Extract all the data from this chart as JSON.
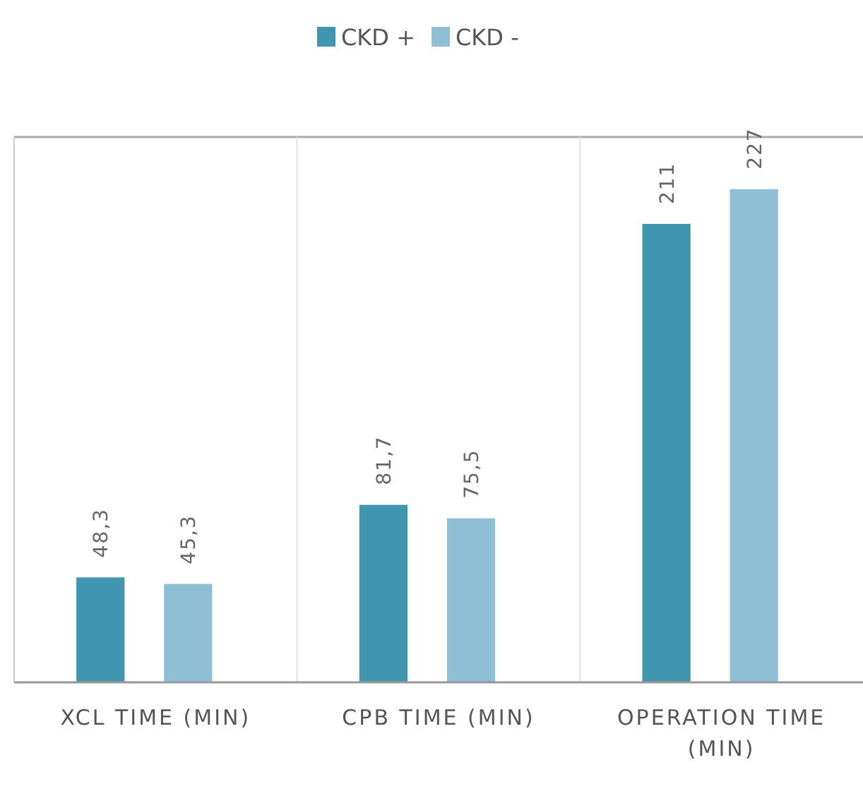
{
  "chart_data": {
    "type": "bar",
    "categories": [
      "XCL TIME (MIN)",
      "CPB TIME (MIN)",
      "OPERATION TIME (MIN)"
    ],
    "series": [
      {
        "name": "CKD +",
        "color": "#3f96ae",
        "values": [
          48.3,
          81.7,
          211
        ],
        "value_labels": [
          "48,3",
          "81,7",
          "211"
        ]
      },
      {
        "name": "CKD -",
        "color": "#8ebfd5",
        "values": [
          45.3,
          75.5,
          227
        ],
        "value_labels": [
          "45,3",
          "75,5",
          "227"
        ]
      }
    ],
    "ylim": [
      0,
      251
    ],
    "grid": "x",
    "legend": "top"
  }
}
